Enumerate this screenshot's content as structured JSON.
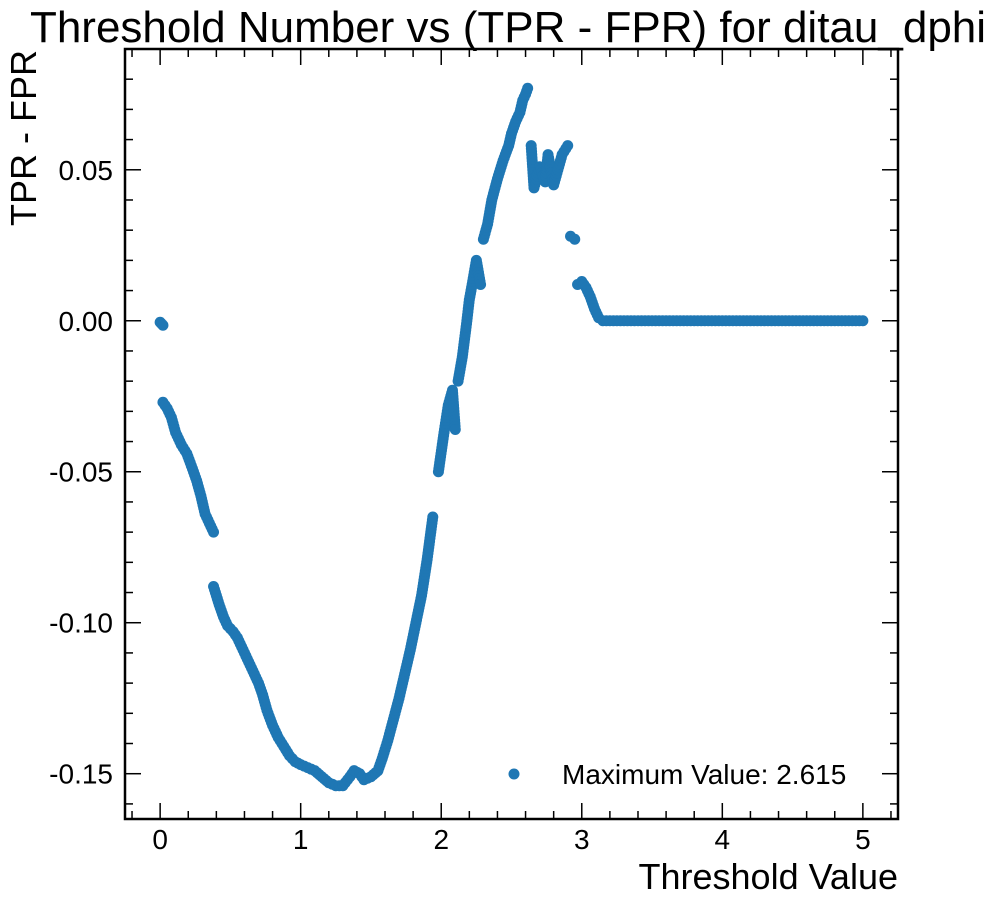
{
  "colors": {
    "series": "#1f77b4",
    "axes": "#000000",
    "background": "#ffffff"
  },
  "chart_data": {
    "type": "scatter",
    "title": "Threshold Number vs (TPR - FPR) for ditau_dphi",
    "xlabel": "Threshold Value",
    "ylabel": "TPR - FPR",
    "xlim": [
      -0.25,
      5.25
    ],
    "ylim": [
      -0.165,
      0.09
    ],
    "xticks": [
      0,
      1,
      2,
      3,
      4,
      5
    ],
    "xtick_labels": [
      "0",
      "1",
      "2",
      "3",
      "4",
      "5"
    ],
    "yticks": [
      0.05,
      0.0,
      -0.05,
      -0.1,
      -0.15
    ],
    "ytick_labels": [
      "0.05",
      "0.00",
      "-0.05",
      "-0.10",
      "-0.15"
    ],
    "grid": false,
    "legend": {
      "position": "lower-right",
      "label": "Maximum Value: 2.615"
    },
    "series": [
      {
        "name": "Maximum Value: 2.615",
        "marker": "circle",
        "points": [
          [
            0.0,
            -0.0005
          ],
          [
            0.01,
            -0.001
          ],
          [
            0.02,
            -0.0015
          ],
          [
            0.02,
            -0.027
          ],
          [
            0.05,
            -0.029
          ],
          [
            0.08,
            -0.032
          ],
          [
            0.11,
            -0.037
          ],
          [
            0.15,
            -0.041
          ],
          [
            0.19,
            -0.044
          ],
          [
            0.23,
            -0.049
          ],
          [
            0.26,
            -0.053
          ],
          [
            0.29,
            -0.058
          ],
          [
            0.32,
            -0.064
          ],
          [
            0.35,
            -0.067
          ],
          [
            0.38,
            -0.07
          ],
          [
            0.38,
            -0.088
          ],
          [
            0.4,
            -0.091
          ],
          [
            0.42,
            -0.094
          ],
          [
            0.45,
            -0.098
          ],
          [
            0.48,
            -0.101
          ],
          [
            0.52,
            -0.103
          ],
          [
            0.55,
            -0.105
          ],
          [
            0.58,
            -0.108
          ],
          [
            0.62,
            -0.112
          ],
          [
            0.66,
            -0.116
          ],
          [
            0.7,
            -0.12
          ],
          [
            0.73,
            -0.124
          ],
          [
            0.76,
            -0.129
          ],
          [
            0.8,
            -0.134
          ],
          [
            0.84,
            -0.138
          ],
          [
            0.88,
            -0.141
          ],
          [
            0.92,
            -0.144
          ],
          [
            0.96,
            -0.146
          ],
          [
            1.0,
            -0.147
          ],
          [
            1.05,
            -0.148
          ],
          [
            1.1,
            -0.149
          ],
          [
            1.15,
            -0.151
          ],
          [
            1.2,
            -0.153
          ],
          [
            1.25,
            -0.154
          ],
          [
            1.3,
            -0.154
          ],
          [
            1.35,
            -0.151
          ],
          [
            1.38,
            -0.149
          ],
          [
            1.42,
            -0.15
          ],
          [
            1.45,
            -0.152
          ],
          [
            1.5,
            -0.151
          ],
          [
            1.55,
            -0.149
          ],
          [
            1.58,
            -0.145
          ],
          [
            1.62,
            -0.139
          ],
          [
            1.66,
            -0.132
          ],
          [
            1.7,
            -0.125
          ],
          [
            1.74,
            -0.117
          ],
          [
            1.78,
            -0.109
          ],
          [
            1.82,
            -0.1
          ],
          [
            1.86,
            -0.091
          ],
          [
            1.9,
            -0.079
          ],
          [
            1.94,
            -0.065
          ],
          [
            1.98,
            -0.05
          ],
          [
            2.02,
            -0.037
          ],
          [
            2.05,
            -0.028
          ],
          [
            2.08,
            -0.023
          ],
          [
            2.1,
            -0.036
          ],
          [
            2.12,
            -0.02
          ],
          [
            2.15,
            -0.012
          ],
          [
            2.18,
            -0.001
          ],
          [
            2.2,
            0.007
          ],
          [
            2.22,
            0.012
          ],
          [
            2.25,
            0.02
          ],
          [
            2.28,
            0.012
          ],
          [
            2.3,
            0.027
          ],
          [
            2.33,
            0.032
          ],
          [
            2.36,
            0.04
          ],
          [
            2.4,
            0.047
          ],
          [
            2.44,
            0.053
          ],
          [
            2.48,
            0.058
          ],
          [
            2.5,
            0.062
          ],
          [
            2.53,
            0.066
          ],
          [
            2.56,
            0.069
          ],
          [
            2.58,
            0.073
          ],
          [
            2.6,
            0.075
          ],
          [
            2.615,
            0.077
          ],
          [
            2.64,
            0.058
          ],
          [
            2.66,
            0.044
          ],
          [
            2.7,
            0.051
          ],
          [
            2.74,
            0.046
          ],
          [
            2.76,
            0.055
          ],
          [
            2.8,
            0.045
          ],
          [
            2.83,
            0.05
          ],
          [
            2.86,
            0.055
          ],
          [
            2.9,
            0.058
          ],
          [
            2.92,
            0.028
          ],
          [
            2.95,
            0.027
          ],
          [
            2.97,
            0.012
          ],
          [
            3.0,
            0.013
          ],
          [
            3.03,
            0.011
          ],
          [
            3.06,
            0.008
          ],
          [
            3.09,
            0.004
          ],
          [
            3.12,
            0.001
          ],
          [
            3.15,
            0.0
          ],
          [
            3.25,
            0.0
          ],
          [
            3.35,
            0.0
          ],
          [
            3.45,
            0.0
          ],
          [
            3.55,
            0.0
          ],
          [
            3.65,
            0.0
          ],
          [
            3.75,
            0.0
          ],
          [
            3.85,
            0.0
          ],
          [
            3.95,
            0.0
          ],
          [
            4.05,
            0.0
          ],
          [
            4.15,
            0.0
          ],
          [
            4.25,
            0.0
          ],
          [
            4.35,
            0.0
          ],
          [
            4.45,
            0.0
          ],
          [
            4.55,
            0.0
          ],
          [
            4.65,
            0.0
          ],
          [
            4.75,
            0.0
          ],
          [
            4.85,
            0.0
          ],
          [
            4.95,
            0.0
          ],
          [
            5.0,
            0.0
          ]
        ]
      }
    ]
  }
}
